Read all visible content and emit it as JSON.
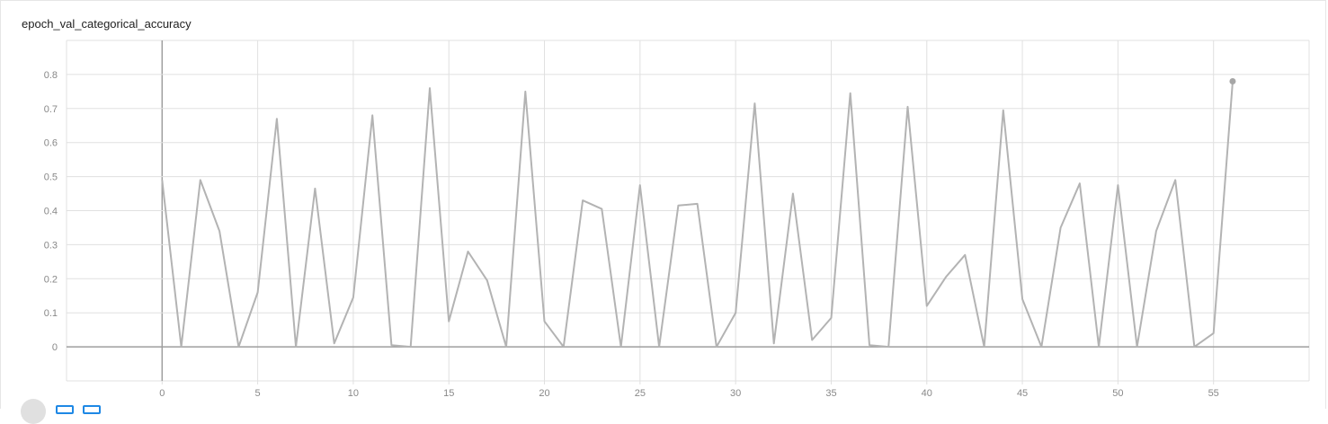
{
  "chart_data": {
    "type": "line",
    "title": "epoch_val_categorical_accuracy",
    "xlabel": "",
    "ylabel": "",
    "xlim": [
      -5,
      60
    ],
    "ylim": [
      -0.1,
      0.9
    ],
    "x_ticks": [
      0,
      5,
      10,
      15,
      20,
      25,
      30,
      35,
      40,
      45,
      50,
      55
    ],
    "y_ticks": [
      0,
      0.1,
      0.2,
      0.3,
      0.4,
      0.5,
      0.6,
      0.7,
      0.8
    ],
    "grid": true,
    "colors": {
      "line": "#b3b3b3",
      "grid": "#e0e0e0",
      "axis": "#9e9e9e"
    },
    "series": [
      {
        "x": [
          0,
          1,
          2,
          3,
          4,
          5,
          6,
          7,
          8,
          9,
          10,
          11,
          12,
          13,
          14,
          15,
          16,
          17,
          18,
          19,
          20,
          21,
          22,
          23,
          24,
          25,
          26,
          27,
          28,
          29,
          30,
          31,
          32,
          33,
          34,
          35,
          36,
          37,
          38,
          39,
          40,
          41,
          42,
          43,
          44,
          45,
          46,
          47,
          48,
          49,
          50,
          51,
          52,
          53,
          54,
          55,
          56
        ],
        "values": [
          0.49,
          0.0,
          0.49,
          0.34,
          0.0,
          0.16,
          0.67,
          0.0,
          0.465,
          0.01,
          0.145,
          0.68,
          0.005,
          0.0,
          0.76,
          0.075,
          0.28,
          0.195,
          0.0,
          0.75,
          0.075,
          0.0,
          0.43,
          0.405,
          0.0,
          0.475,
          0.0,
          0.415,
          0.42,
          0.0,
          0.1,
          0.715,
          0.01,
          0.45,
          0.02,
          0.085,
          0.745,
          0.005,
          0.0,
          0.705,
          0.12,
          0.205,
          0.27,
          0.0,
          0.695,
          0.14,
          0.0,
          0.35,
          0.48,
          0.0,
          0.475,
          0.0,
          0.34,
          0.49,
          0.0,
          0.04,
          0.78
        ]
      }
    ]
  },
  "controls": {
    "toggle_icon": "circle-button",
    "button_icons": [
      "expand-icon",
      "data-icon"
    ]
  }
}
